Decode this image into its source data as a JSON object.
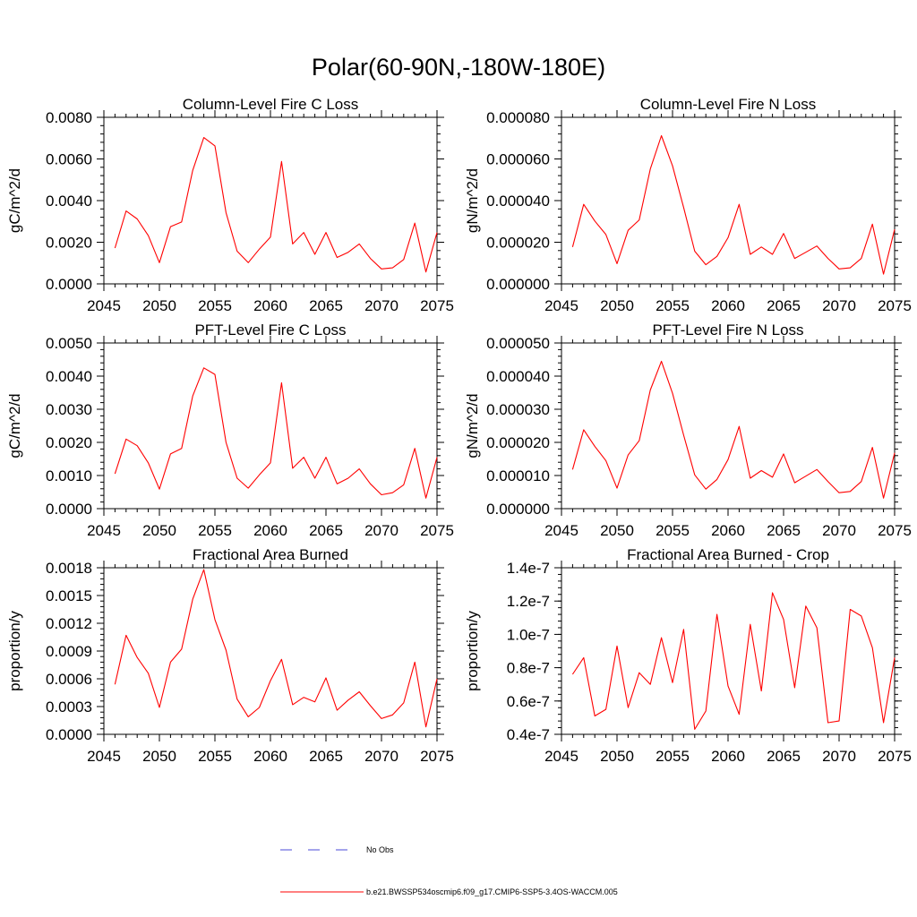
{
  "figure": {
    "title": "Polar(60-90N,-180W-180E)",
    "line_color": "#ff0000",
    "noobs_color": "#4a4ad8"
  },
  "legend": {
    "noobs_label": "No Obs",
    "case_label": "b.e21.BWSSP534oscmip6.f09_g17.CMIP6-SSP5-3.4OS-WACCM.005"
  },
  "chart_data": [
    {
      "type": "line",
      "title": "Column-Level Fire C Loss",
      "xlabel": "",
      "ylabel": "gC/m^2/d",
      "xlim": [
        2045,
        2075
      ],
      "ylim": [
        0,
        0.008
      ],
      "xticks": [
        2045,
        2050,
        2055,
        2060,
        2065,
        2070,
        2075
      ],
      "xticklabels": [
        "2045",
        "2050",
        "2055",
        "2060",
        "2065",
        "2070",
        "2075"
      ],
      "yticks": [
        0,
        0.002,
        0.004,
        0.006,
        0.008
      ],
      "yticklabels": [
        "0.0000",
        "0.0020",
        "0.0040",
        "0.0060",
        "0.0080"
      ],
      "x": [
        2046,
        2047,
        2048,
        2049,
        2050,
        2051,
        2052,
        2053,
        2054,
        2055,
        2056,
        2057,
        2058,
        2059,
        2060,
        2061,
        2062,
        2063,
        2064,
        2065,
        2066,
        2067,
        2068,
        2069,
        2070,
        2071,
        2072,
        2073,
        2074,
        2075
      ],
      "values": [
        0.00172,
        0.0035,
        0.00312,
        0.00232,
        0.00102,
        0.00275,
        0.00297,
        0.00545,
        0.00703,
        0.00663,
        0.00342,
        0.00157,
        0.00102,
        0.00167,
        0.00225,
        0.00588,
        0.00192,
        0.00247,
        0.00142,
        0.00247,
        0.00127,
        0.00152,
        0.00192,
        0.00122,
        0.00072,
        0.00077,
        0.00117,
        0.00292,
        0.00057,
        0.00247
      ]
    },
    {
      "type": "line",
      "title": "Column-Level Fire N Loss",
      "xlabel": "",
      "ylabel": "gN/m^2/d",
      "xlim": [
        2045,
        2075
      ],
      "ylim": [
        0,
        8e-05
      ],
      "xticks": [
        2045,
        2050,
        2055,
        2060,
        2065,
        2070,
        2075
      ],
      "xticklabels": [
        "2045",
        "2050",
        "2055",
        "2060",
        "2065",
        "2070",
        "2075"
      ],
      "yticks": [
        0,
        2e-05,
        4e-05,
        6e-05,
        8e-05
      ],
      "yticklabels": [
        "0.000000",
        "0.000020",
        "0.000040",
        "0.000060",
        "0.000080"
      ],
      "x": [
        2046,
        2047,
        2048,
        2049,
        2050,
        2051,
        2052,
        2053,
        2054,
        2055,
        2056,
        2057,
        2058,
        2059,
        2060,
        2061,
        2062,
        2063,
        2064,
        2065,
        2066,
        2067,
        2068,
        2069,
        2070,
        2071,
        2072,
        2073,
        2074,
        2075
      ],
      "values": [
        1.77e-05,
        3.82e-05,
        3.02e-05,
        2.37e-05,
        9.7e-06,
        2.57e-05,
        3.07e-05,
        5.52e-05,
        7.12e-05,
        5.67e-05,
        3.67e-05,
        1.57e-05,
        9.2e-06,
        1.32e-05,
        2.22e-05,
        3.82e-05,
        1.42e-05,
        1.77e-05,
        1.42e-05,
        2.42e-05,
        1.22e-05,
        1.52e-05,
        1.82e-05,
        1.22e-05,
        7.2e-06,
        7.7e-06,
        1.22e-05,
        2.87e-05,
        4.7e-06,
        2.62e-05
      ]
    },
    {
      "type": "line",
      "title": "PFT-Level Fire C Loss",
      "xlabel": "",
      "ylabel": "gC/m^2/d",
      "xlim": [
        2045,
        2075
      ],
      "ylim": [
        0,
        0.005
      ],
      "xticks": [
        2045,
        2050,
        2055,
        2060,
        2065,
        2070,
        2075
      ],
      "xticklabels": [
        "2045",
        "2050",
        "2055",
        "2060",
        "2065",
        "2070",
        "2075"
      ],
      "yticks": [
        0,
        0.001,
        0.002,
        0.003,
        0.004,
        0.005
      ],
      "yticklabels": [
        "0.0000",
        "0.0010",
        "0.0020",
        "0.0030",
        "0.0040",
        "0.0050"
      ],
      "x": [
        2046,
        2047,
        2048,
        2049,
        2050,
        2051,
        2052,
        2053,
        2054,
        2055,
        2056,
        2057,
        2058,
        2059,
        2060,
        2061,
        2062,
        2063,
        2064,
        2065,
        2066,
        2067,
        2068,
        2069,
        2070,
        2071,
        2072,
        2073,
        2074,
        2075
      ],
      "values": [
        0.00105,
        0.0021,
        0.0019,
        0.00138,
        0.00059,
        0.00165,
        0.00182,
        0.0034,
        0.00425,
        0.00405,
        0.002,
        0.00092,
        0.00062,
        0.00102,
        0.00138,
        0.0038,
        0.00122,
        0.00155,
        0.00092,
        0.00155,
        0.00075,
        0.00092,
        0.0012,
        0.00075,
        0.00042,
        0.00048,
        0.00072,
        0.00182,
        0.00032,
        0.00155
      ]
    },
    {
      "type": "line",
      "title": "PFT-Level Fire N Loss",
      "xlabel": "",
      "ylabel": "gN/m^2/d",
      "xlim": [
        2045,
        2075
      ],
      "ylim": [
        0,
        5e-05
      ],
      "xticks": [
        2045,
        2050,
        2055,
        2060,
        2065,
        2070,
        2075
      ],
      "xticklabels": [
        "2045",
        "2050",
        "2055",
        "2060",
        "2065",
        "2070",
        "2075"
      ],
      "yticks": [
        0,
        1e-05,
        2e-05,
        3e-05,
        4e-05,
        5e-05
      ],
      "yticklabels": [
        "0.000000",
        "0.000010",
        "0.000020",
        "0.000030",
        "0.000040",
        "0.000050"
      ],
      "x": [
        2046,
        2047,
        2048,
        2049,
        2050,
        2051,
        2052,
        2053,
        2054,
        2055,
        2056,
        2057,
        2058,
        2059,
        2060,
        2061,
        2062,
        2063,
        2064,
        2065,
        2066,
        2067,
        2068,
        2069,
        2070,
        2071,
        2072,
        2073,
        2074,
        2075
      ],
      "values": [
        1.18e-05,
        2.38e-05,
        1.88e-05,
        1.45e-05,
        6.2e-06,
        1.62e-05,
        2.05e-05,
        3.58e-05,
        4.45e-05,
        3.48e-05,
        2.22e-05,
        1.02e-05,
        5.9e-06,
        8.8e-06,
        1.48e-05,
        2.48e-05,
        9.2e-06,
        1.15e-05,
        9.5e-06,
        1.65e-05,
        7.8e-06,
        9.8e-06,
        1.18e-05,
        8.2e-06,
        4.8e-06,
        5.2e-06,
        8.2e-06,
        1.85e-05,
        3.2e-06,
        1.68e-05
      ]
    },
    {
      "type": "line",
      "title": "Fractional Area Burned",
      "xlabel": "",
      "ylabel": "proportion/y",
      "xlim": [
        2045,
        2075
      ],
      "ylim": [
        0,
        0.0018
      ],
      "xticks": [
        2045,
        2050,
        2055,
        2060,
        2065,
        2070,
        2075
      ],
      "xticklabels": [
        "2045",
        "2050",
        "2055",
        "2060",
        "2065",
        "2070",
        "2075"
      ],
      "yticks": [
        0,
        0.0003,
        0.0006,
        0.0009,
        0.0012,
        0.0015,
        0.0018
      ],
      "yticklabels": [
        "0.0000",
        "0.0003",
        "0.0006",
        "0.0009",
        "0.0012",
        "0.0015",
        "0.0018"
      ],
      "x": [
        2046,
        2047,
        2048,
        2049,
        2050,
        2051,
        2052,
        2053,
        2054,
        2055,
        2056,
        2057,
        2058,
        2059,
        2060,
        2061,
        2062,
        2063,
        2064,
        2065,
        2066,
        2067,
        2068,
        2069,
        2070,
        2071,
        2072,
        2073,
        2074,
        2075
      ],
      "values": [
        0.00054,
        0.00107,
        0.00083,
        0.00066,
        0.00029,
        0.00078,
        0.00092,
        0.00146,
        0.00178,
        0.00124,
        0.00091,
        0.00038,
        0.00019,
        0.00029,
        0.00058,
        0.00081,
        0.00032,
        0.0004,
        0.00035,
        0.00061,
        0.00026,
        0.00037,
        0.00046,
        0.00031,
        0.00017,
        0.00021,
        0.00034,
        0.00078,
        8e-05,
        0.0006
      ]
    },
    {
      "type": "line",
      "title": "Fractional Area Burned - Crop",
      "xlabel": "",
      "ylabel": "proportion/y",
      "xlim": [
        2045,
        2075
      ],
      "ylim": [
        4e-08,
        1.4e-07
      ],
      "xticks": [
        2045,
        2050,
        2055,
        2060,
        2065,
        2070,
        2075
      ],
      "xticklabels": [
        "2045",
        "2050",
        "2055",
        "2060",
        "2065",
        "2070",
        "2075"
      ],
      "yticks": [
        4e-08,
        6e-08,
        8e-08,
        1e-07,
        1.2e-07,
        1.4e-07
      ],
      "yticklabels": [
        "0.4e-7",
        "0.6e-7",
        "0.8e-7",
        "1.0e-7",
        "1.2e-7",
        "1.4e-7"
      ],
      "x": [
        2046,
        2047,
        2048,
        2049,
        2050,
        2051,
        2052,
        2053,
        2054,
        2055,
        2056,
        2057,
        2058,
        2059,
        2060,
        2061,
        2062,
        2063,
        2064,
        2065,
        2066,
        2067,
        2068,
        2069,
        2070,
        2071,
        2072,
        2073,
        2074,
        2075
      ],
      "values": [
        7.6e-08,
        8.6e-08,
        5.1e-08,
        5.5e-08,
        9.3e-08,
        5.6e-08,
        7.7e-08,
        7e-08,
        9.8e-08,
        7.1e-08,
        1.03e-07,
        4.3e-08,
        5.4e-08,
        1.12e-07,
        6.9e-08,
        5.2e-08,
        1.06e-07,
        6.6e-08,
        1.25e-07,
        1.09e-07,
        6.8e-08,
        1.17e-07,
        1.04e-07,
        4.7e-08,
        4.8e-08,
        1.15e-07,
        1.11e-07,
        9.2e-08,
        4.7e-08,
        8.6e-08
      ]
    }
  ]
}
